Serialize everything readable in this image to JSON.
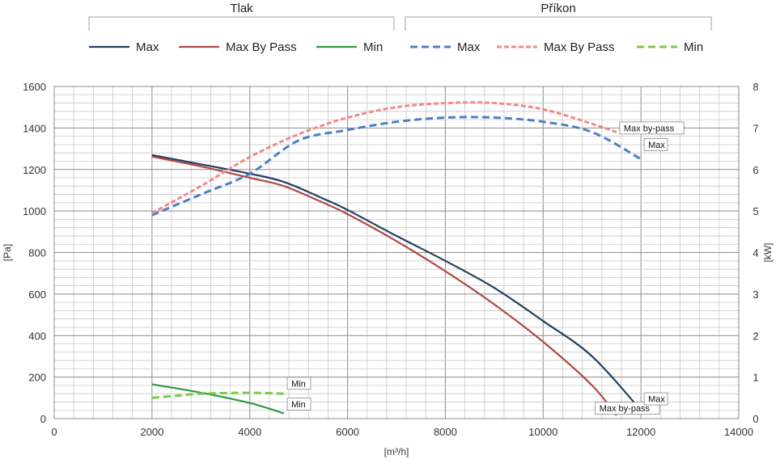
{
  "chart_data": {
    "type": "line",
    "x_label": "[m³/h]",
    "y_label_left": "[Pa]",
    "y_label_right": "[kW]",
    "xlim": [
      0,
      14000
    ],
    "ylim_left": [
      0,
      1600
    ],
    "ylim_right": [
      0,
      8
    ],
    "x_ticks": [
      0,
      2000,
      4000,
      6000,
      8000,
      10000,
      12000,
      14000
    ],
    "y_ticks_left": [
      0,
      200,
      400,
      600,
      800,
      1000,
      1200,
      1400,
      1600
    ],
    "y_ticks_right": [
      0,
      1,
      2,
      3,
      4,
      5,
      6,
      7,
      8
    ],
    "grid": true,
    "legend_groups": [
      {
        "title": "Tlak",
        "entries": [
          "Max",
          "Max   By Pass",
          "Min"
        ]
      },
      {
        "title": "Příkon",
        "entries": [
          "Max",
          "Max   By Pass",
          "Min"
        ]
      }
    ],
    "series": [
      {
        "group": "Tlak",
        "name": "Max",
        "axis": "left",
        "color": "#24405e",
        "style": "solid",
        "x": [
          2000,
          3000,
          4000,
          4700,
          5500,
          6000,
          7000,
          8000,
          9000,
          10000,
          11000,
          12000
        ],
        "y": [
          1270,
          1225,
          1180,
          1140,
          1060,
          1005,
          880,
          760,
          630,
          470,
          300,
          40
        ]
      },
      {
        "group": "Tlak",
        "name": "Max   By Pass",
        "axis": "left",
        "color": "#b04a45",
        "style": "solid",
        "x": [
          2000,
          3000,
          4000,
          4700,
          5500,
          6000,
          7000,
          8000,
          9000,
          10000,
          11000,
          11500
        ],
        "y": [
          1262,
          1215,
          1160,
          1120,
          1040,
          985,
          855,
          710,
          550,
          370,
          160,
          15
        ]
      },
      {
        "group": "Tlak",
        "name": "Min",
        "axis": "left",
        "color": "#2f9a46",
        "style": "solid",
        "x": [
          2000,
          3000,
          4000,
          4700
        ],
        "y": [
          165,
          125,
          75,
          25
        ]
      },
      {
        "group": "Příkon",
        "name": "Max",
        "axis": "right",
        "color": "#4f7fc4",
        "style": "dashed",
        "x": [
          2000,
          3000,
          4000,
          5000,
          6000,
          7000,
          8000,
          9000,
          10000,
          11000,
          12000
        ],
        "y": [
          4.9,
          5.4,
          5.9,
          6.7,
          6.95,
          7.15,
          7.25,
          7.25,
          7.15,
          6.9,
          6.25
        ]
      },
      {
        "group": "Příkon",
        "name": "Max   By Pass",
        "axis": "right",
        "color": "#ef8b8b",
        "style": "dotted-dash",
        "x": [
          2000,
          3000,
          4000,
          5000,
          6000,
          7000,
          8000,
          9000,
          10000,
          11000,
          11500
        ],
        "y": [
          4.95,
          5.6,
          6.3,
          6.85,
          7.25,
          7.5,
          7.6,
          7.6,
          7.45,
          7.1,
          6.9
        ]
      },
      {
        "group": "Příkon",
        "name": "Min",
        "axis": "right",
        "color": "#7cc94a",
        "style": "dashed",
        "x": [
          2000,
          2500,
          3000,
          4000,
          4700
        ],
        "y": [
          0.5,
          0.55,
          0.6,
          0.62,
          0.6
        ]
      }
    ],
    "annotations": [
      {
        "text": "Max by-pass",
        "series_axis": "right",
        "x": 11500,
        "y": 7.0
      },
      {
        "text": "Max",
        "series_axis": "right",
        "x": 12000,
        "y": 6.6
      },
      {
        "text": "Min",
        "series_axis": "right",
        "x": 4700,
        "y": 0.85
      },
      {
        "text": "Min",
        "series_axis": "left",
        "x": 4700,
        "y": 70
      },
      {
        "text": "Max by-pass",
        "series_axis": "left",
        "x": 11000,
        "y": 50
      },
      {
        "text": "Max",
        "series_axis": "left",
        "x": 12000,
        "y": 95
      }
    ]
  }
}
